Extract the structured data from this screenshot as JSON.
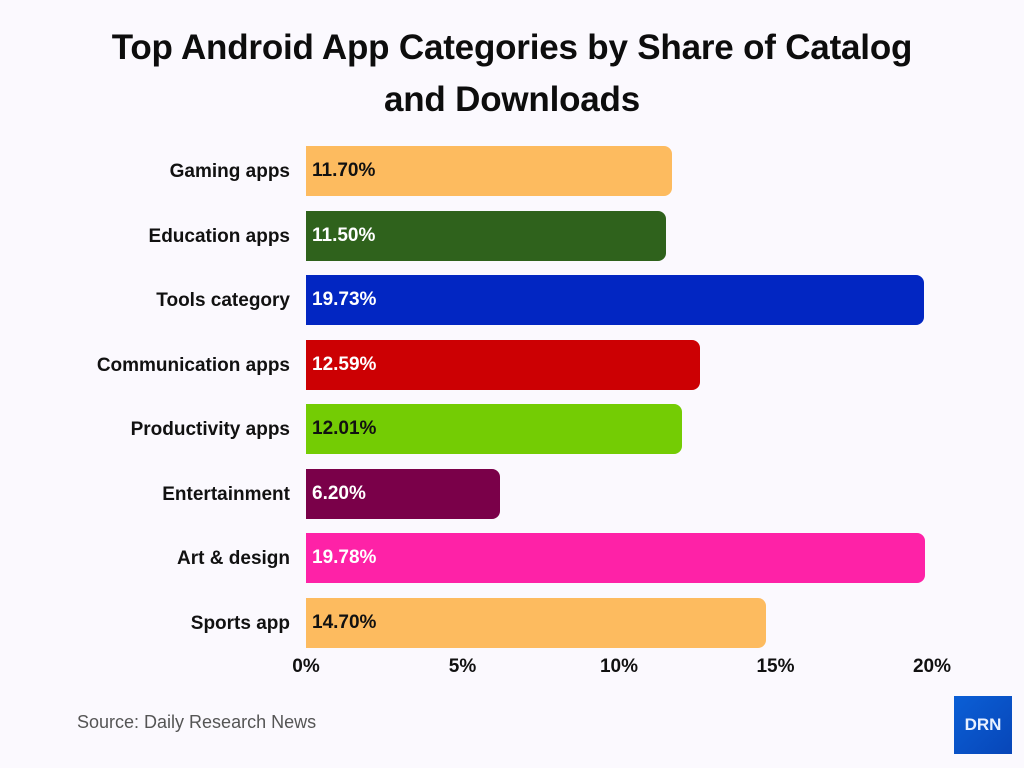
{
  "chart_data": {
    "type": "bar",
    "orientation": "horizontal",
    "title": "Top Android App Categories by Share of Catalog and Downloads",
    "xlabel": "",
    "ylabel": "",
    "xlim": [
      0,
      20
    ],
    "grid": false,
    "legend": null,
    "categories": [
      "Gaming apps",
      "Education apps",
      "Tools category",
      "Communication apps",
      "Productivity apps",
      "Entertainment",
      "Art & design",
      "Sports app"
    ],
    "values": [
      11.7,
      11.5,
      19.73,
      12.59,
      12.01,
      6.2,
      19.78,
      14.7
    ],
    "value_labels": [
      "11.70%",
      "11.50%",
      "19.73%",
      "12.59%",
      "12.01%",
      "6.20%",
      "19.78%",
      "14.70%"
    ],
    "colors": [
      "#fdbb5f",
      "#2f621c",
      "#0226c2",
      "#cc0003",
      "#74cc04",
      "#7a0049",
      "#fe22a7",
      "#fdbb5f"
    ],
    "label_colors": [
      "#111111",
      "#ffffff",
      "#ffffff",
      "#ffffff",
      "#111111",
      "#ffffff",
      "#ffffff",
      "#111111"
    ],
    "x_ticks": [
      "0%",
      "5%",
      "10%",
      "15%",
      "20%"
    ],
    "x_tick_values": [
      0,
      5,
      10,
      15,
      20
    ]
  },
  "header": {
    "title_line1": "Top Android App Categories by Share of Catalog",
    "title_line2": "and Downloads"
  },
  "footer": {
    "source": "Source: Daily Research News",
    "logo_text": "DRN"
  }
}
